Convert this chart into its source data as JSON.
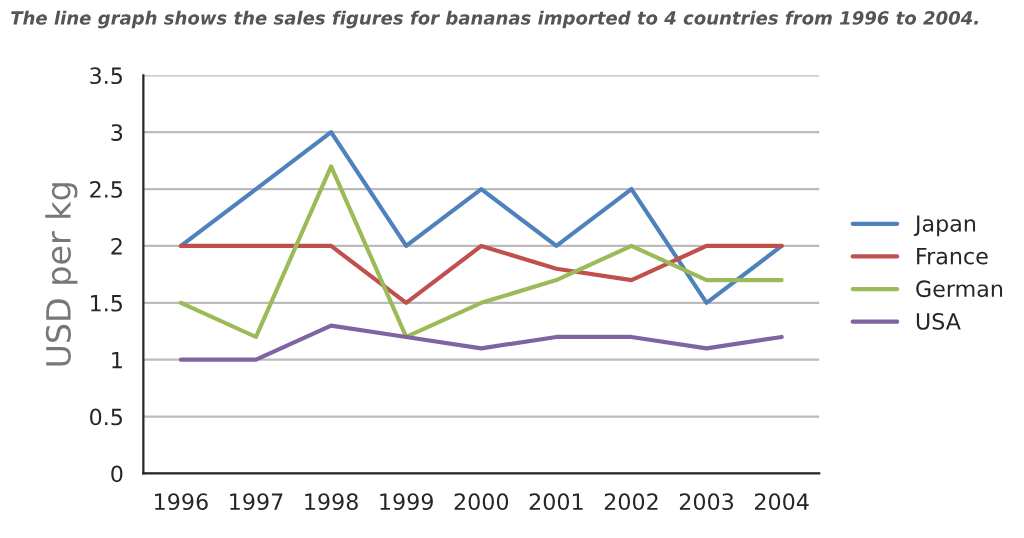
{
  "chart_data": {
    "type": "line",
    "title": "The line graph shows the sales figures for bananas imported to 4 countries from 1996 to 2004.",
    "ylabel": "USD per kg",
    "categories": [
      "1996",
      "1997",
      "1998",
      "1999",
      "2000",
      "2001",
      "2002",
      "2003",
      "2004"
    ],
    "series": [
      {
        "name": "Japan",
        "color": "#4f81bd",
        "values": [
          2,
          2.5,
          3,
          2,
          2.5,
          2,
          2.5,
          1.5,
          2
        ]
      },
      {
        "name": "France",
        "color": "#c0504d",
        "values": [
          2,
          2,
          2,
          1.5,
          2,
          1.8,
          1.7,
          2,
          2
        ]
      },
      {
        "name": "German",
        "color": "#9bbb59",
        "values": [
          1.5,
          1.2,
          2.7,
          1.2,
          1.5,
          1.7,
          2,
          1.7,
          1.7
        ]
      },
      {
        "name": "USA",
        "color": "#8064a2",
        "values": [
          1,
          1,
          1.3,
          1.2,
          1.1,
          1.2,
          1.2,
          1.1,
          1.2
        ]
      }
    ],
    "ylim": [
      0,
      3.5
    ],
    "yticks": [
      0,
      0.5,
      1,
      1.5,
      2,
      2.5,
      3,
      3.5
    ],
    "grid": "y",
    "legend": "right",
    "marker": "none",
    "line_style": "solid"
  }
}
